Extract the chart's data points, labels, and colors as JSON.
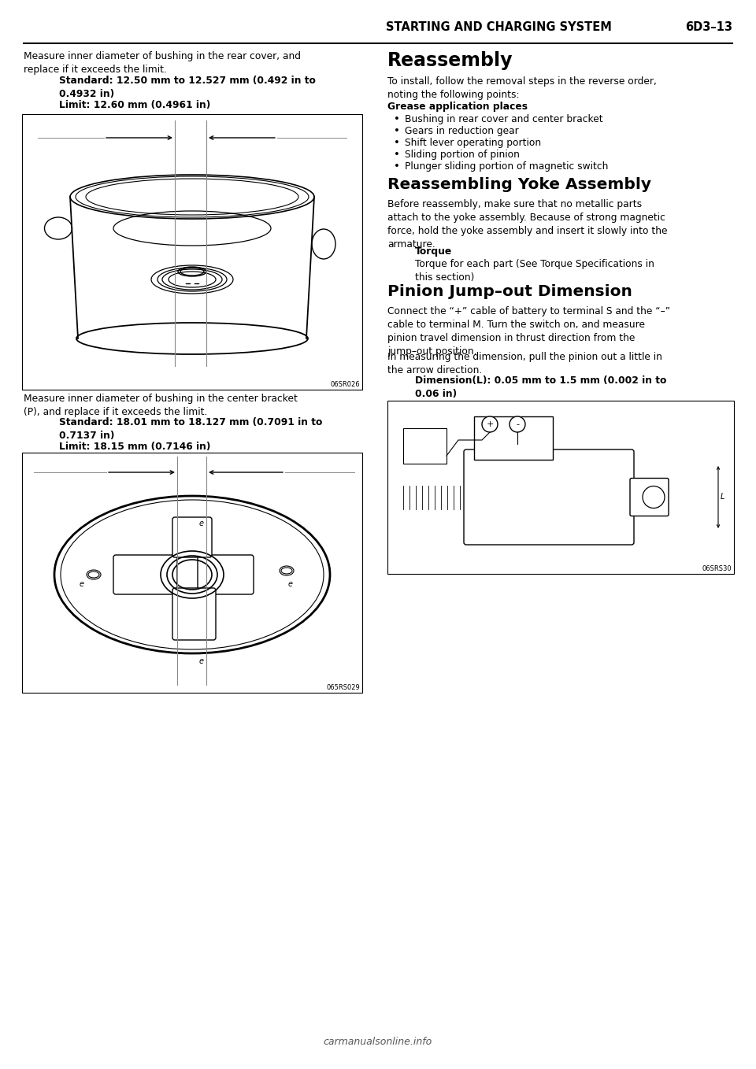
{
  "page_header_left": "STARTING AND CHARGING SYSTEM",
  "page_header_right": "6D3–13",
  "footer_text": "carmanualsonline.info",
  "background_color": "#ffffff",
  "text_color": "#000000",
  "left_text1": "Measure inner diameter of bushing in the rear cover, and\nreplace if it exceeds the limit.",
  "left_std1": "Standard: 12.50 mm to 12.527 mm (0.492 in to\n0.4932 in)",
  "left_lim1": "Limit: 12.60 mm (0.4961 in)",
  "left_img1_code": "06SR026",
  "left_text2": "Measure inner diameter of bushing in the center bracket\n(P), and replace if it exceeds the limit.",
  "left_std2": "Standard: 18.01 mm to 18.127 mm (0.7091 in to\n0.7137 in)",
  "left_lim2": "Limit: 18.15 mm (0.7146 in)",
  "left_img2_code": "065RS029",
  "right_h1": "Reassembly",
  "right_p1": "To install, follow the removal steps in the reverse order,\nnoting the following points:",
  "right_bold1": "Grease application places",
  "right_bullets": [
    "Bushing in rear cover and center bracket",
    "Gears in reduction gear",
    "Shift lever operating portion",
    "Sliding portion of pinion",
    "Plunger sliding portion of magnetic switch"
  ],
  "right_h2": "Reassembling Yoke Assembly",
  "right_p2": "Before reassembly, make sure that no metallic parts\nattach to the yoke assembly. Because of strong magnetic\nforce, hold the yoke assembly and insert it slowly into the\narmature.",
  "right_bold2": "Torque",
  "right_p3": "Torque for each part (See Torque Specifications in\nthis section)",
  "right_h3": "Pinion Jump–out Dimension",
  "right_p4": "Connect the “+” cable of battery to terminal S and the “–”\ncable to terminal M. Turn the switch on, and measure\npinion travel dimension in thrust direction from the\njump–out position.",
  "right_p5": "In measuring the dimension, pull the pinion out a little in\nthe arrow direction.",
  "right_bold3": "Dimension(L): 0.05 mm to 1.5 mm (0.002 in to\n0.06 in)",
  "right_img3_code": "06SRS30"
}
